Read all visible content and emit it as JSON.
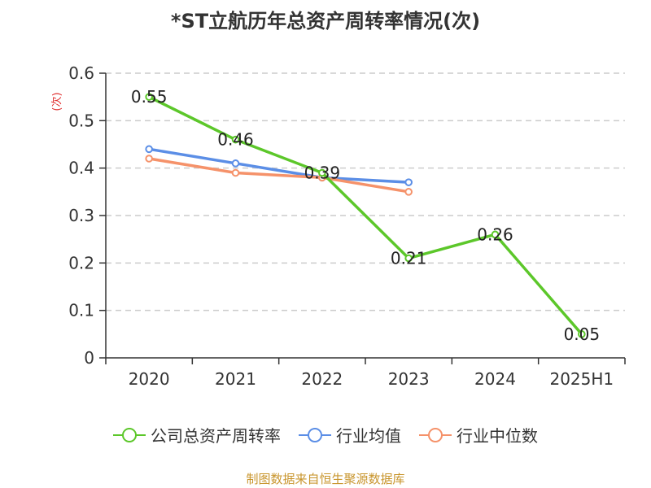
{
  "title": "*ST立航历年总资产周转率情况(次)",
  "source": "制图数据来自恒生聚源数据库",
  "colors": {
    "company": "#5cc72a",
    "industry_avg": "#5b8ee6",
    "industry_median": "#f5926a",
    "ylabel": "#e03030",
    "source": "#c8952c",
    "grid": "#cccccc",
    "axis": "#333333"
  },
  "chart_data": {
    "type": "line",
    "title": "*ST立航历年总资产周转率情况(次)",
    "xlabel": "",
    "ylabel": "(次)",
    "categories": [
      "2020",
      "2021",
      "2022",
      "2023",
      "2024",
      "2025H1"
    ],
    "ylim": [
      0,
      0.6
    ],
    "yticks": [
      "0",
      "0.1",
      "0.2",
      "0.3",
      "0.4",
      "0.5",
      "0.6"
    ],
    "grid": true,
    "legend_position": "bottom",
    "series": [
      {
        "name": "公司总资产周转率",
        "values": [
          0.55,
          0.46,
          0.39,
          0.21,
          0.26,
          0.05
        ],
        "labels": [
          "0.55",
          "0.46",
          "0.39",
          "0.21",
          "0.26",
          "0.05"
        ]
      },
      {
        "name": "行业均值",
        "values": [
          0.44,
          0.41,
          0.38,
          0.37,
          null,
          null
        ]
      },
      {
        "name": "行业中位数",
        "values": [
          0.42,
          0.39,
          0.38,
          0.35,
          null,
          null
        ]
      }
    ]
  }
}
